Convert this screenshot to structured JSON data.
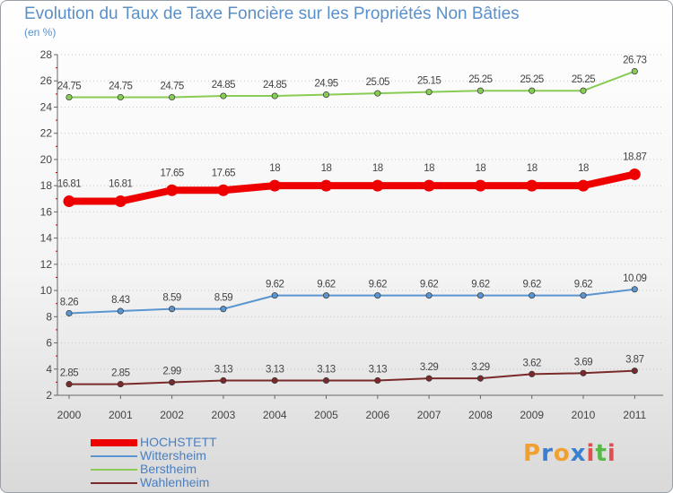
{
  "title": "Evolution du Taux de Taxe Foncière sur les Propriétés Non Bâties",
  "subtitle": "(en %)",
  "brand": {
    "letters": [
      "P",
      "r",
      "o",
      "x",
      "i",
      "t",
      "i"
    ],
    "colors": [
      "#f0a030",
      "#3a7fd0",
      "#f0a030",
      "#3a7fd0",
      "#e05050",
      "#58b848",
      "#e05050"
    ]
  },
  "chart_data": {
    "type": "line",
    "title": "Evolution du Taux de Taxe Foncière sur les Propriétés Non Bâties",
    "ylabel": "(en %)",
    "xlabel": "",
    "ylim": [
      2,
      28
    ],
    "yticks": [
      2,
      4,
      6,
      8,
      10,
      12,
      14,
      16,
      18,
      20,
      22,
      24,
      26,
      28
    ],
    "categories": [
      "2000",
      "2001",
      "2002",
      "2003",
      "2004",
      "2005",
      "2006",
      "2007",
      "2008",
      "2009",
      "2010",
      "2011"
    ],
    "legend_position": "bottom-left",
    "series": [
      {
        "name": "HOCHSTETT",
        "color": "#ee0000",
        "bold": true,
        "values": [
          16.81,
          16.81,
          17.65,
          17.65,
          18,
          18,
          18,
          18,
          18,
          18,
          18,
          18.87
        ],
        "labels": [
          "16.81",
          "16.81",
          "17.65",
          "17.65",
          "18",
          "18",
          "18",
          "18",
          "18",
          "18",
          "18",
          "18.87"
        ]
      },
      {
        "name": "Wittersheim",
        "color": "#5b95d0",
        "bold": false,
        "values": [
          8.26,
          8.43,
          8.59,
          8.59,
          9.62,
          9.62,
          9.62,
          9.62,
          9.62,
          9.62,
          9.62,
          10.09
        ],
        "labels": [
          "8.26",
          "8.43",
          "8.59",
          "8.59",
          "9.62",
          "9.62",
          "9.62",
          "9.62",
          "9.62",
          "9.62",
          "9.62",
          "10.09"
        ]
      },
      {
        "name": "Berstheim",
        "color": "#88cc55",
        "bold": false,
        "values": [
          24.75,
          24.75,
          24.75,
          24.85,
          24.85,
          24.95,
          25.05,
          25.15,
          25.25,
          25.25,
          25.25,
          26.73
        ],
        "labels": [
          "24.75",
          "24.75",
          "24.75",
          "24.85",
          "24.85",
          "24.95",
          "25.05",
          "25.15",
          "25.25",
          "25.25",
          "25.25",
          "26.73"
        ]
      },
      {
        "name": "Wahlenheim",
        "color": "#7a2a2a",
        "bold": false,
        "values": [
          2.85,
          2.85,
          2.99,
          3.13,
          3.13,
          3.13,
          3.13,
          3.29,
          3.29,
          3.62,
          3.69,
          3.87
        ],
        "labels": [
          "2.85",
          "2.85",
          "2.99",
          "3.13",
          "3.13",
          "3.13",
          "3.13",
          "3.29",
          "3.29",
          "3.62",
          "3.69",
          "3.87"
        ]
      }
    ]
  }
}
